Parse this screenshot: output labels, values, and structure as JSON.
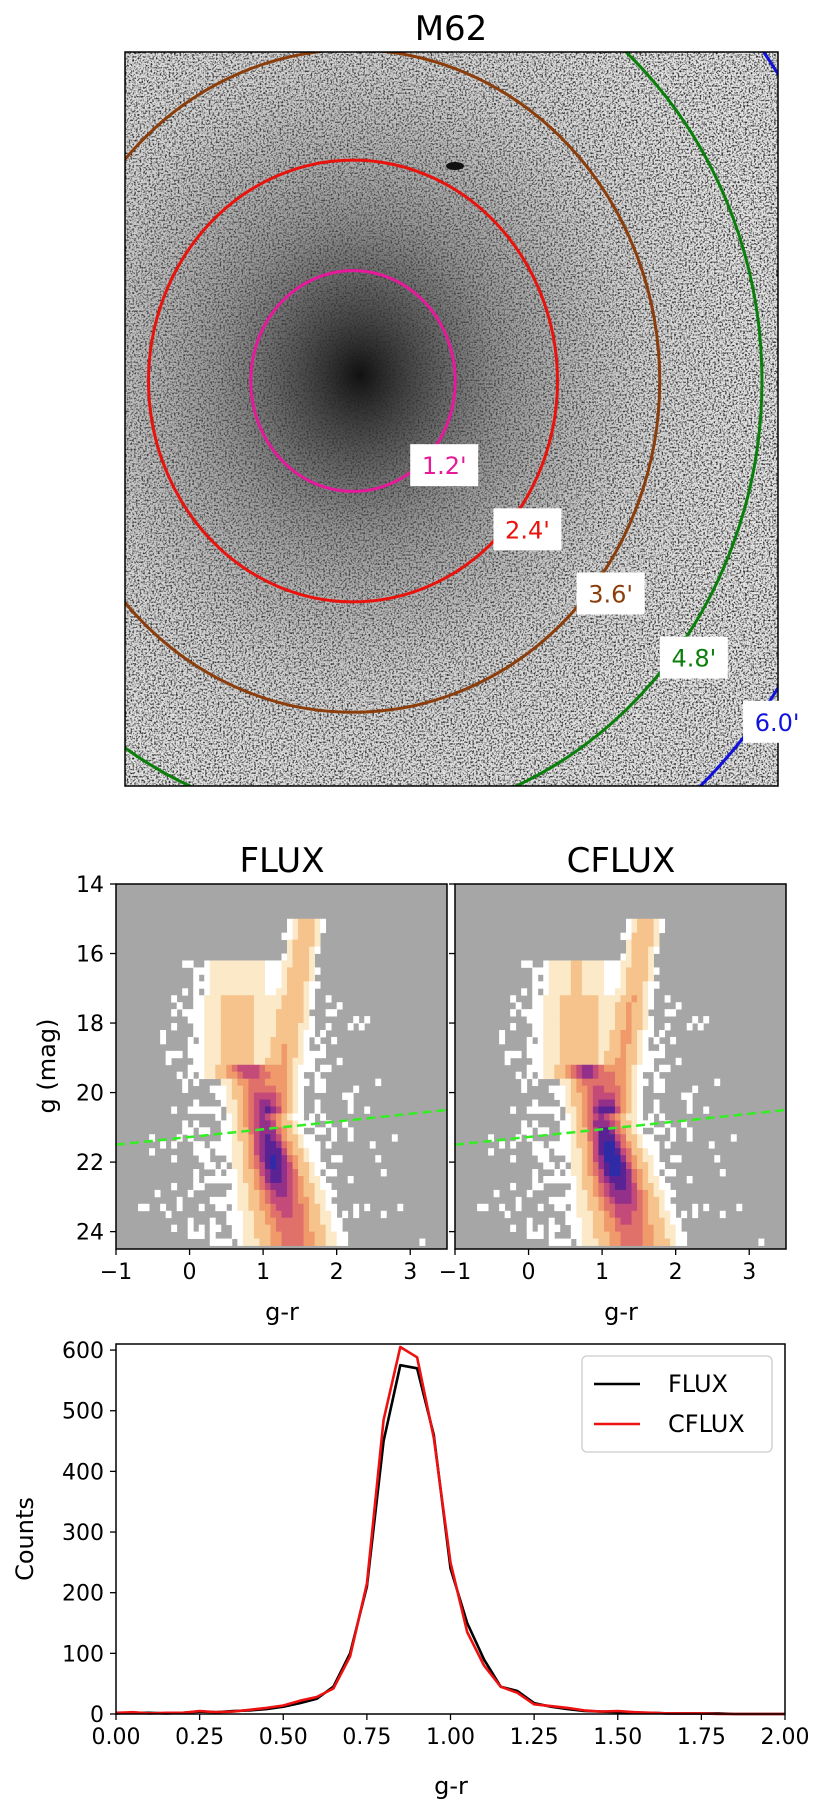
{
  "chart_data": [
    {
      "type": "image",
      "title": "M62",
      "rings": [
        {
          "label": "1.2'",
          "radius_arcmin": 1.2,
          "color": "#e6199b"
        },
        {
          "label": "2.4'",
          "radius_arcmin": 2.4,
          "color": "#e8130c"
        },
        {
          "label": "3.6'",
          "radius_arcmin": 3.6,
          "color": "#8b3e0c"
        },
        {
          "label": "4.8'",
          "radius_arcmin": 4.8,
          "color": "#0b7f0b"
        },
        {
          "label": "6.0'",
          "radius_arcmin": 6.0,
          "color": "#1212dd"
        }
      ]
    },
    {
      "type": "heatmap",
      "panels": [
        {
          "title": "FLUX"
        },
        {
          "title": "CFLUX"
        }
      ],
      "xlabel": "g-r",
      "ylabel": "g (mag)",
      "xlim": [
        -1,
        3.5
      ],
      "ylim": [
        24.5,
        14
      ],
      "xticks": [
        -1,
        0,
        1,
        2,
        3
      ],
      "yticks": [
        14,
        16,
        18,
        20,
        22,
        24
      ],
      "xticklabels": [
        "−1",
        "0",
        "1",
        "2",
        "3"
      ],
      "yticklabels": [
        "14",
        "16",
        "18",
        "20",
        "22",
        "24"
      ],
      "dashed_line": {
        "x": [
          -1,
          3.5
        ],
        "y": [
          21.5,
          20.5
        ],
        "color": "#33ee22"
      }
    },
    {
      "type": "line",
      "xlabel": "g-r",
      "ylabel": "Counts",
      "xlim": [
        0,
        2
      ],
      "ylim": [
        0,
        610
      ],
      "xticks": [
        0,
        0.25,
        0.5,
        0.75,
        1.0,
        1.25,
        1.5,
        1.75,
        2.0
      ],
      "xticklabels": [
        "0.00",
        "0.25",
        "0.50",
        "0.75",
        "1.00",
        "1.25",
        "1.50",
        "1.75",
        "2.00"
      ],
      "yticks": [
        0,
        100,
        200,
        300,
        400,
        500,
        600
      ],
      "yticklabels": [
        "0",
        "100",
        "200",
        "300",
        "400",
        "500",
        "600"
      ],
      "legend": "top-right",
      "x": [
        0.0,
        0.05,
        0.1,
        0.15,
        0.2,
        0.25,
        0.3,
        0.35,
        0.4,
        0.45,
        0.5,
        0.55,
        0.6,
        0.65,
        0.7,
        0.75,
        0.8,
        0.85,
        0.9,
        0.95,
        1.0,
        1.05,
        1.1,
        1.15,
        1.2,
        1.25,
        1.3,
        1.35,
        1.4,
        1.45,
        1.5,
        1.55,
        1.6,
        1.65,
        1.7,
        1.75,
        1.8,
        1.85,
        1.9,
        1.95,
        2.0
      ],
      "series": [
        {
          "name": "FLUX",
          "color": "#000000",
          "values": [
            1,
            2,
            2,
            1,
            2,
            4,
            3,
            5,
            6,
            8,
            12,
            18,
            25,
            45,
            100,
            210,
            450,
            575,
            570,
            460,
            240,
            150,
            90,
            45,
            38,
            18,
            12,
            8,
            5,
            4,
            3,
            2,
            2,
            1,
            1,
            1,
            1,
            0,
            0,
            0,
            0
          ]
        },
        {
          "name": "CFLUX",
          "color": "#ee1111",
          "values": [
            2,
            3,
            1,
            2,
            2,
            5,
            3,
            4,
            7,
            10,
            14,
            22,
            28,
            42,
            95,
            215,
            485,
            605,
            588,
            455,
            250,
            135,
            80,
            45,
            35,
            16,
            13,
            10,
            6,
            4,
            5,
            3,
            2,
            1,
            1,
            1,
            0,
            0,
            0,
            0,
            0
          ]
        }
      ]
    }
  ]
}
